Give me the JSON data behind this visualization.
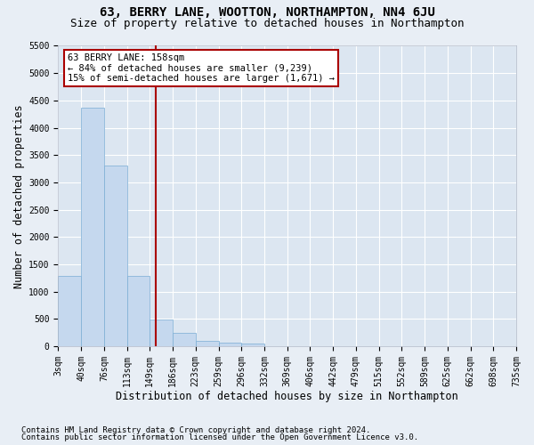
{
  "title": "63, BERRY LANE, WOOTTON, NORTHAMPTON, NN4 6JU",
  "subtitle": "Size of property relative to detached houses in Northampton",
  "xlabel": "Distribution of detached houses by size in Northampton",
  "ylabel": "Number of detached properties",
  "annotation_line": "63 BERRY LANE: 158sqm\n← 84% of detached houses are smaller (9,239)\n15% of semi-detached houses are larger (1,671) →",
  "footnote1": "Contains HM Land Registry data © Crown copyright and database right 2024.",
  "footnote2": "Contains public sector information licensed under the Open Government Licence v3.0.",
  "bin_labels": [
    "3sqm",
    "40sqm",
    "76sqm",
    "113sqm",
    "149sqm",
    "186sqm",
    "223sqm",
    "259sqm",
    "296sqm",
    "332sqm",
    "369sqm",
    "406sqm",
    "442sqm",
    "479sqm",
    "515sqm",
    "552sqm",
    "589sqm",
    "625sqm",
    "662sqm",
    "698sqm",
    "735sqm"
  ],
  "bar_values": [
    1280,
    4360,
    3300,
    1280,
    490,
    240,
    100,
    70,
    55,
    0,
    0,
    0,
    0,
    0,
    0,
    0,
    0,
    0,
    0,
    0
  ],
  "bar_color": "#c5d8ee",
  "bar_edge_color": "#7aadd4",
  "vline_color": "#aa0000",
  "ylim": [
    0,
    5500
  ],
  "yticks": [
    0,
    500,
    1000,
    1500,
    2000,
    2500,
    3000,
    3500,
    4000,
    4500,
    5000,
    5500
  ],
  "bg_color": "#e8eef5",
  "plot_bg_color": "#dce6f1",
  "grid_color": "#ffffff",
  "title_fontsize": 10,
  "subtitle_fontsize": 9,
  "axis_label_fontsize": 8.5,
  "tick_fontsize": 7,
  "annotation_fontsize": 7.5,
  "footnote_fontsize": 6.5
}
